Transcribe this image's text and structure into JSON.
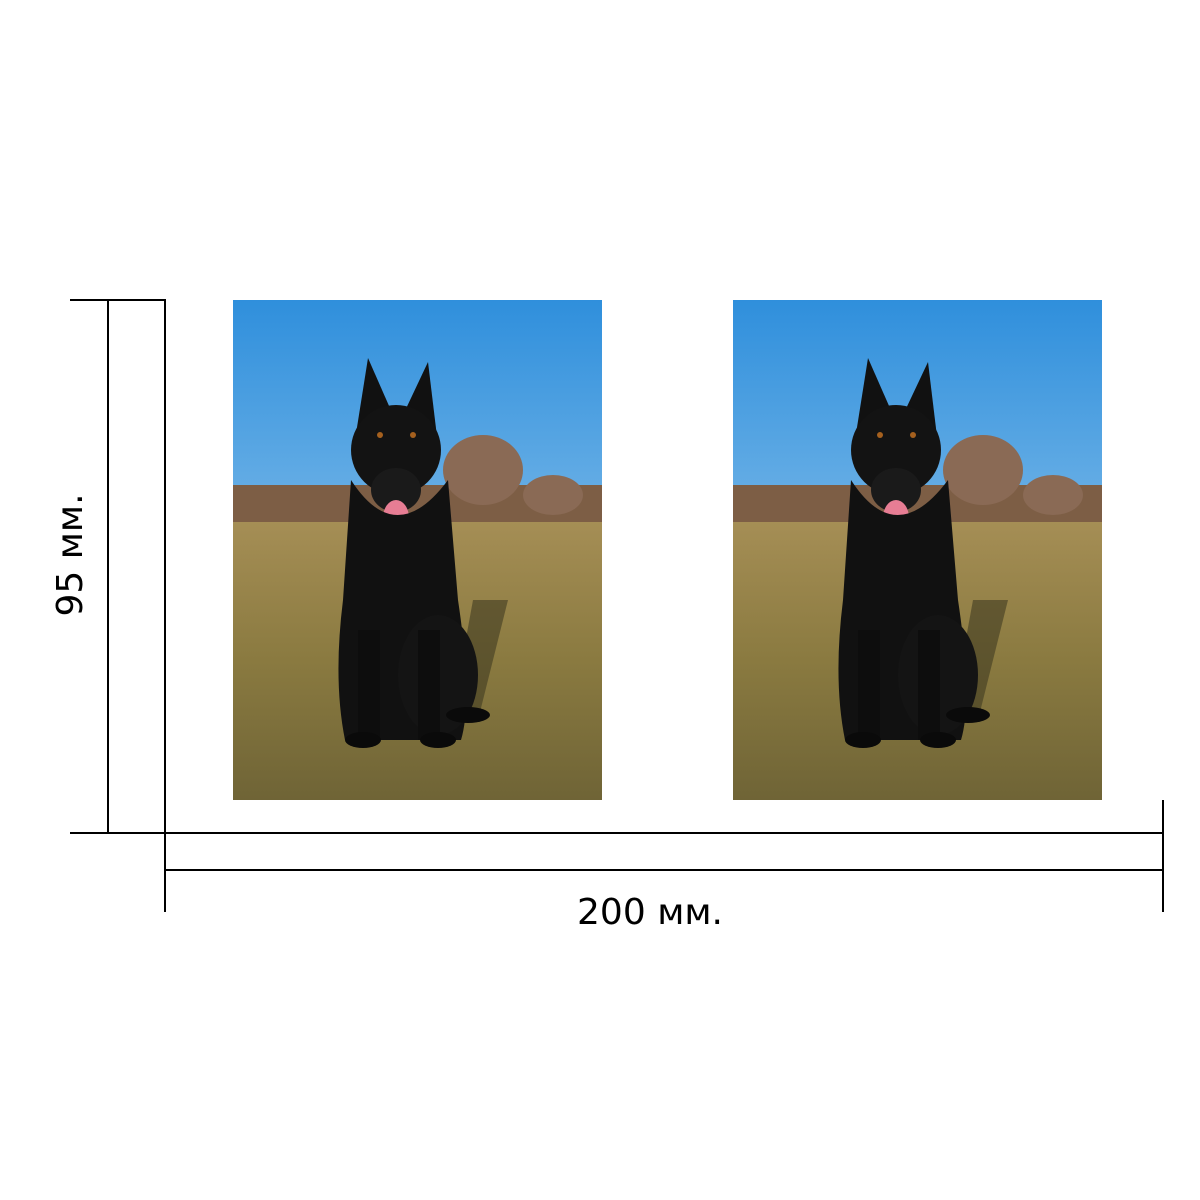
{
  "dimensions": {
    "height": "95 мм.",
    "width": "200 мм."
  }
}
